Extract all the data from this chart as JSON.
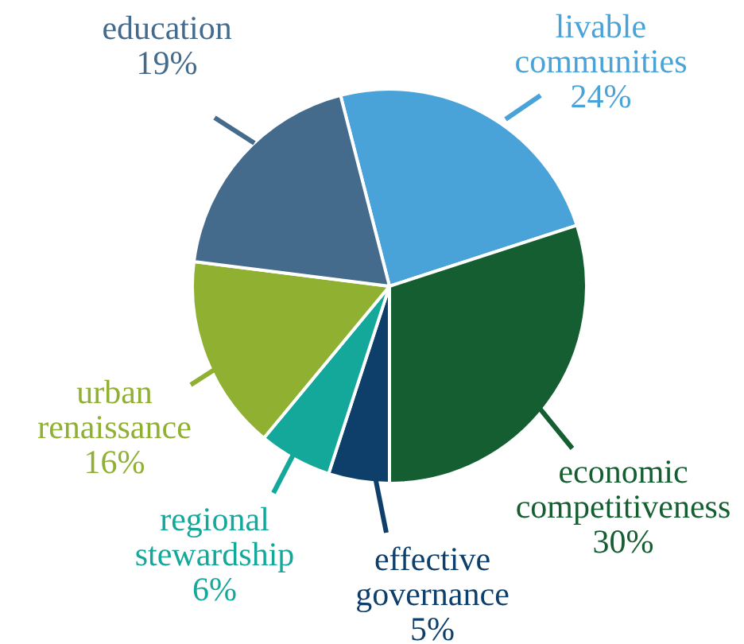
{
  "chart_data": {
    "type": "pie",
    "categories": [
      "livable communities",
      "economic competitiveness",
      "effective governance",
      "regional stewardship",
      "urban renaissance",
      "education"
    ],
    "values": [
      24,
      30,
      5,
      6,
      16,
      19
    ],
    "colors": [
      "#4aa3d8",
      "#155e32",
      "#0e3f6b",
      "#14a89a",
      "#8fb030",
      "#456b8c"
    ],
    "value_labels": [
      "24%",
      "30%",
      "5%",
      "6%",
      "16%",
      "19%"
    ],
    "legend": false
  }
}
